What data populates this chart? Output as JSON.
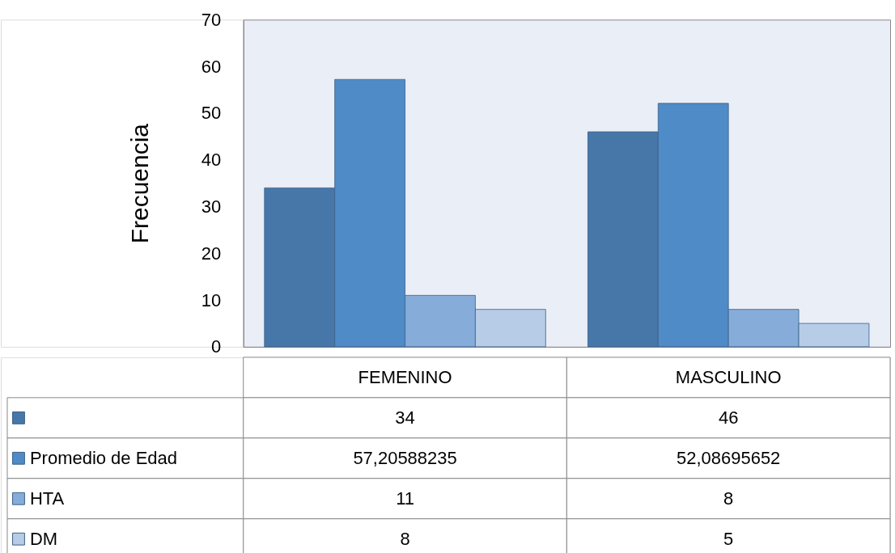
{
  "chart_data": {
    "type": "bar",
    "ylabel": "Frecuencia",
    "categories": [
      "FEMENINO",
      "MASCULINO"
    ],
    "series": [
      {
        "color": "#4677a8",
        "values": [
          34,
          46
        ],
        "value_labels": [
          "34",
          "46"
        ]
      },
      {
        "name": "Promedio de Edad",
        "color": "#4f8bc6",
        "values": [
          57.20588235,
          52.08695652
        ],
        "value_labels": [
          "57,20588235",
          "52,08695652"
        ]
      },
      {
        "name": "HTA",
        "color": "#86acda",
        "values": [
          11,
          8
        ],
        "value_labels": [
          "11",
          "8"
        ]
      },
      {
        "name": "DM",
        "color": "#b6cce7",
        "values": [
          8,
          5
        ],
        "value_labels": [
          "8",
          "5"
        ]
      }
    ],
    "ylim": [
      0,
      70
    ],
    "yticks": [
      0,
      10,
      20,
      30,
      40,
      50,
      60,
      70
    ],
    "grid": false,
    "legend": "bottom left"
  }
}
